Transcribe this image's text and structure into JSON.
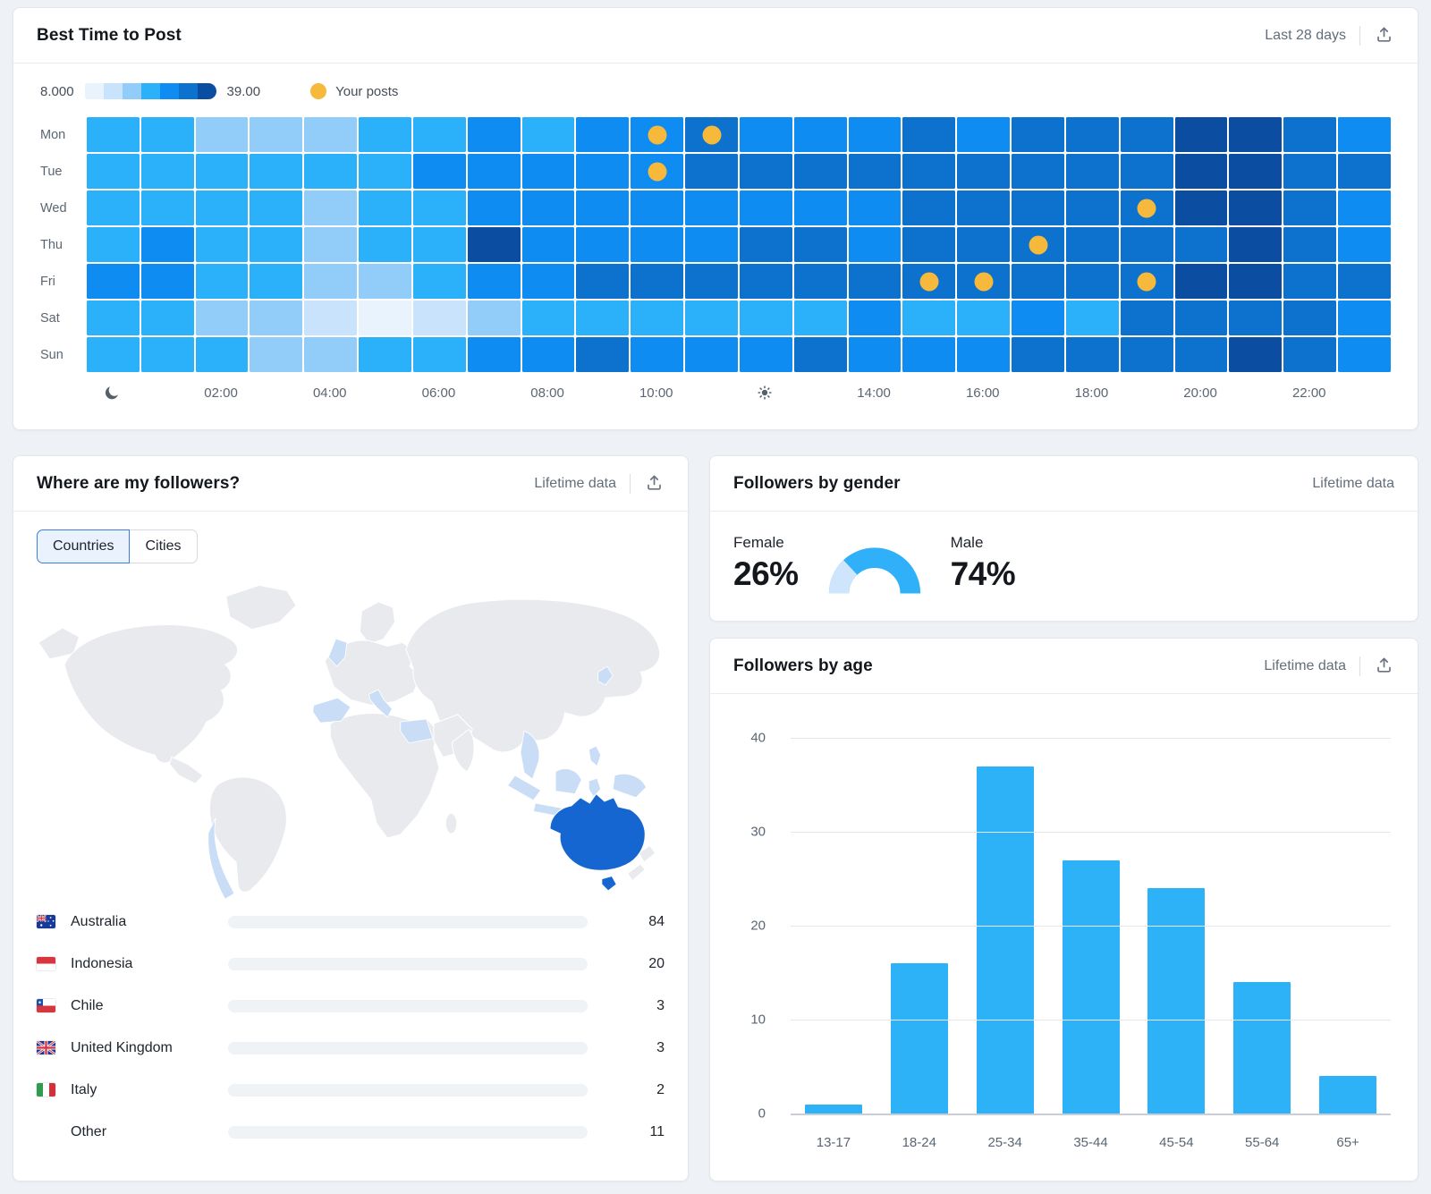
{
  "colors": {
    "accent_cyan": "#2db2f8",
    "post_dot": "#f6b93b",
    "male": "#2fb0f8",
    "female": "#cfe5fb",
    "map_land": "#e8eaee",
    "map_highlight": "#1566d0",
    "map_tint": "#c9ddf6",
    "other_bar": "#8e959f",
    "heat_palette": [
      "#e9f3fd",
      "#c8e3fb",
      "#92ccf8",
      "#2bb1f9",
      "#0e8cf2",
      "#0c72cd",
      "#0b4da0"
    ]
  },
  "best_time": {
    "title": "Best Time to Post",
    "range_label": "Last 28 days",
    "legend": {
      "min": "8.000",
      "max": "39.00",
      "posts_label": "Your posts"
    },
    "days": [
      "Mon",
      "Tue",
      "Wed",
      "Thu",
      "Fri",
      "Sat",
      "Sun"
    ],
    "x_ticks": [
      {
        "hour": 0,
        "icon": "moon-icon"
      },
      {
        "hour": 2,
        "label": "02:00"
      },
      {
        "hour": 4,
        "label": "04:00"
      },
      {
        "hour": 6,
        "label": "06:00"
      },
      {
        "hour": 8,
        "label": "08:00"
      },
      {
        "hour": 10,
        "label": "10:00"
      },
      {
        "hour": 12,
        "icon": "sun-icon"
      },
      {
        "hour": 14,
        "label": "14:00"
      },
      {
        "hour": 16,
        "label": "16:00"
      },
      {
        "hour": 18,
        "label": "18:00"
      },
      {
        "hour": 20,
        "label": "20:00"
      },
      {
        "hour": 22,
        "label": "22:00"
      }
    ],
    "heatmap_levels": [
      [
        3,
        3,
        2,
        2,
        2,
        3,
        3,
        4,
        3,
        4,
        4,
        5,
        4,
        4,
        4,
        5,
        4,
        5,
        5,
        5,
        6,
        6,
        5,
        4
      ],
      [
        3,
        3,
        3,
        3,
        3,
        3,
        4,
        4,
        4,
        4,
        4,
        5,
        5,
        5,
        5,
        5,
        5,
        5,
        5,
        5,
        6,
        6,
        5,
        5
      ],
      [
        3,
        3,
        3,
        3,
        2,
        3,
        3,
        4,
        4,
        4,
        4,
        4,
        4,
        4,
        4,
        5,
        5,
        5,
        5,
        5,
        6,
        6,
        5,
        4
      ],
      [
        3,
        4,
        3,
        3,
        2,
        3,
        3,
        6,
        4,
        4,
        4,
        4,
        5,
        5,
        4,
        5,
        5,
        5,
        5,
        5,
        5,
        6,
        5,
        4
      ],
      [
        4,
        4,
        3,
        3,
        2,
        2,
        3,
        4,
        4,
        5,
        5,
        5,
        5,
        5,
        5,
        5,
        5,
        5,
        5,
        5,
        6,
        6,
        5,
        5
      ],
      [
        3,
        3,
        2,
        2,
        1,
        0,
        1,
        2,
        3,
        3,
        3,
        3,
        3,
        3,
        4,
        3,
        3,
        4,
        3,
        5,
        5,
        5,
        5,
        4
      ],
      [
        3,
        3,
        3,
        2,
        2,
        3,
        3,
        4,
        4,
        5,
        4,
        4,
        4,
        5,
        4,
        4,
        4,
        5,
        5,
        5,
        5,
        6,
        5,
        4
      ]
    ],
    "post_dots": [
      [
        0,
        10
      ],
      [
        0,
        11
      ],
      [
        1,
        10
      ],
      [
        2,
        19
      ],
      [
        3,
        17
      ],
      [
        4,
        15
      ],
      [
        4,
        16
      ],
      [
        4,
        19
      ]
    ]
  },
  "followers_location": {
    "title": "Where are my followers?",
    "range_label": "Lifetime data",
    "tabs": [
      {
        "label": "Countries",
        "active": true
      },
      {
        "label": "Cities",
        "active": false
      }
    ],
    "max_value": 84,
    "countries": [
      {
        "name": "Australia",
        "value": 84,
        "flag": "au"
      },
      {
        "name": "Indonesia",
        "value": 20,
        "flag": "id"
      },
      {
        "name": "Chile",
        "value": 3,
        "flag": "cl"
      },
      {
        "name": "United Kingdom",
        "value": 3,
        "flag": "gb"
      },
      {
        "name": "Italy",
        "value": 2,
        "flag": "it"
      },
      {
        "name": "Other",
        "value": 11,
        "flag": null
      }
    ]
  },
  "followers_gender": {
    "title": "Followers by gender",
    "range_label": "Lifetime data",
    "female_label": "Female",
    "female_pct": 26,
    "female_pct_label": "26%",
    "male_label": "Male",
    "male_pct": 74,
    "male_pct_label": "74%"
  },
  "followers_age": {
    "title": "Followers by age",
    "range_label": "Lifetime data",
    "categories": [
      "13-17",
      "18-24",
      "25-34",
      "35-44",
      "45-54",
      "55-64",
      "65+"
    ],
    "values": [
      1,
      16,
      37,
      27,
      24,
      14,
      4
    ],
    "y_ticks": [
      0,
      10,
      20,
      30,
      40
    ],
    "y_max": 40
  },
  "chart_data": [
    {
      "type": "heatmap",
      "title": "Best Time to Post",
      "rows": [
        "Mon",
        "Tue",
        "Wed",
        "Thu",
        "Fri",
        "Sat",
        "Sun"
      ],
      "columns_hours": [
        0,
        1,
        2,
        3,
        4,
        5,
        6,
        7,
        8,
        9,
        10,
        11,
        12,
        13,
        14,
        15,
        16,
        17,
        18,
        19,
        20,
        21,
        22,
        23
      ],
      "value_scale": {
        "min": 8.0,
        "max": 39.0
      },
      "intensity_levels_0to6": [
        [
          3,
          3,
          2,
          2,
          2,
          3,
          3,
          4,
          3,
          4,
          4,
          5,
          4,
          4,
          4,
          5,
          4,
          5,
          5,
          5,
          6,
          6,
          5,
          4
        ],
        [
          3,
          3,
          3,
          3,
          3,
          3,
          4,
          4,
          4,
          4,
          4,
          5,
          5,
          5,
          5,
          5,
          5,
          5,
          5,
          5,
          6,
          6,
          5,
          5
        ],
        [
          3,
          3,
          3,
          3,
          2,
          3,
          3,
          4,
          4,
          4,
          4,
          4,
          4,
          4,
          4,
          5,
          5,
          5,
          5,
          5,
          6,
          6,
          5,
          4
        ],
        [
          3,
          4,
          3,
          3,
          2,
          3,
          3,
          6,
          4,
          4,
          4,
          4,
          5,
          5,
          4,
          5,
          5,
          5,
          5,
          5,
          5,
          6,
          5,
          4
        ],
        [
          4,
          4,
          3,
          3,
          2,
          2,
          3,
          4,
          4,
          5,
          5,
          5,
          5,
          5,
          5,
          5,
          5,
          5,
          5,
          5,
          6,
          6,
          5,
          5
        ],
        [
          3,
          3,
          2,
          2,
          1,
          0,
          1,
          2,
          3,
          3,
          3,
          3,
          3,
          3,
          4,
          3,
          3,
          4,
          3,
          5,
          5,
          5,
          5,
          4
        ],
        [
          3,
          3,
          3,
          2,
          2,
          3,
          3,
          4,
          4,
          5,
          4,
          4,
          4,
          5,
          4,
          4,
          4,
          5,
          5,
          5,
          5,
          6,
          5,
          4
        ]
      ],
      "your_posts_day_hour": [
        [
          "Mon",
          10
        ],
        [
          "Mon",
          11
        ],
        [
          "Tue",
          10
        ],
        [
          "Wed",
          19
        ],
        [
          "Thu",
          17
        ],
        [
          "Fri",
          15
        ],
        [
          "Fri",
          16
        ],
        [
          "Fri",
          19
        ]
      ]
    },
    {
      "type": "pie",
      "title": "Followers by gender",
      "labels": [
        "Female",
        "Male"
      ],
      "values": [
        26,
        74
      ],
      "layout": "semicircle-gauge"
    },
    {
      "type": "bar",
      "title": "Followers by age",
      "categories": [
        "13-17",
        "18-24",
        "25-34",
        "35-44",
        "45-54",
        "55-64",
        "65+"
      ],
      "values": [
        1,
        16,
        37,
        27,
        24,
        14,
        4
      ],
      "xlabel": "",
      "ylabel": "",
      "ylim": [
        0,
        40
      ],
      "grid": true
    },
    {
      "type": "bar",
      "title": "Where are my followers? (Countries)",
      "categories": [
        "Australia",
        "Indonesia",
        "Chile",
        "United Kingdom",
        "Italy",
        "Other"
      ],
      "values": [
        84,
        20,
        3,
        3,
        2,
        11
      ],
      "layout": "horizontal"
    }
  ]
}
